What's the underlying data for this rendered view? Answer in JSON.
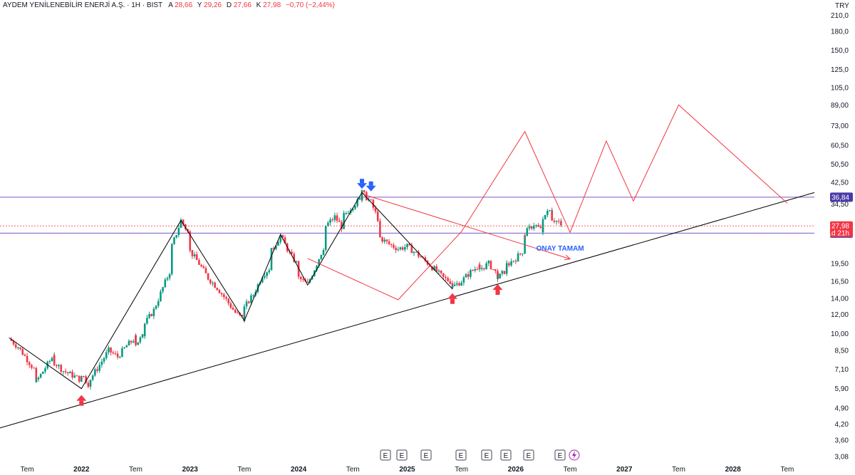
{
  "header": {
    "symbol_name": "AYDEM YENİLENEBİLİR ENERJİ A.Ş. · 1H · BIST",
    "open_label": "A",
    "open_value": "28,66",
    "high_label": "Y",
    "high_value": "29,26",
    "low_label": "D",
    "low_value": "27,66",
    "close_label": "K",
    "close_value": "27,98",
    "change": "−0,70 (−2,44%)"
  },
  "currency": "TRY",
  "colors": {
    "up": "#089981",
    "down": "#f23645",
    "projection": "#f23645",
    "zigzag": "#000000",
    "trendline": "#000000",
    "level_line": "#7e57c2",
    "price_marker": "#f23645",
    "level_tag": "#4a3aa8",
    "annotation": "#2962ff",
    "arrow_down": "#2962ff",
    "arrow_up": "#f23645"
  },
  "y_axis_labels": [
    "210,0",
    "180,0",
    "150,0",
    "125,0",
    "105,0",
    "89,00",
    "73,00",
    "60,50",
    "50,50",
    "42,50",
    "34,50",
    "19,50",
    "16,50",
    "14,00",
    "12,00",
    "10,00",
    "8,50",
    "7,10",
    "5,90",
    "4,90",
    "4,20",
    "3,60",
    "3,08"
  ],
  "price_tags": {
    "upper_level": "36,84",
    "last_price": "27,98",
    "countdown": "1d 21h",
    "lower_level": "26,12"
  },
  "annotation_text": "ONAY TAMAM",
  "x_axis_labels": [
    "Tem",
    "2022",
    "Tem",
    "2023",
    "Tem",
    "2024",
    "Tem",
    "2025",
    "Tem",
    "2026",
    "Tem",
    "2027",
    "Tem",
    "2028",
    "Tem"
  ],
  "event_markers": [
    "E",
    "E",
    "E",
    "E",
    "E",
    "E",
    "E",
    "E",
    "E"
  ],
  "chart_data": {
    "type": "candlestick",
    "title": "AYDEM YENİLENEBİLİR ENERJİ A.Ş. · 1H · BIST",
    "y_scale": "log",
    "ylim": [
      3.0,
      230
    ],
    "xlim": [
      "2021-04",
      "2028-10"
    ],
    "grid": false,
    "horizontal_levels": [
      36.84,
      26.12
    ],
    "last_price": 27.98,
    "price_path": [
      {
        "x": "2021-05",
        "y": 9.5
      },
      {
        "x": "2021-06",
        "y": 8.8
      },
      {
        "x": "2021-07",
        "y": 7.8
      },
      {
        "x": "2021-08",
        "y": 6.9
      },
      {
        "x": "2021-08",
        "y": 6.3
      },
      {
        "x": "2021-09",
        "y": 7.2
      },
      {
        "x": "2021-10",
        "y": 8.2
      },
      {
        "x": "2021-10",
        "y": 7.6
      },
      {
        "x": "2021-11",
        "y": 7.0
      },
      {
        "x": "2021-12",
        "y": 6.7
      },
      {
        "x": "2022-01",
        "y": 6.4
      },
      {
        "x": "2022-01",
        "y": 6.8
      },
      {
        "x": "2022-02",
        "y": 6.0
      },
      {
        "x": "2022-02",
        "y": 6.5
      },
      {
        "x": "2022-03",
        "y": 7.4
      },
      {
        "x": "2022-04",
        "y": 8.5
      },
      {
        "x": "2022-05",
        "y": 8.0
      },
      {
        "x": "2022-06",
        "y": 8.9
      },
      {
        "x": "2022-07",
        "y": 9.6
      },
      {
        "x": "2022-07",
        "y": 9.1
      },
      {
        "x": "2022-08",
        "y": 9.9
      },
      {
        "x": "2022-08",
        "y": 11.0
      },
      {
        "x": "2022-09",
        "y": 12.5
      },
      {
        "x": "2022-10",
        "y": 15.5
      },
      {
        "x": "2022-11",
        "y": 19.0
      },
      {
        "x": "2022-11",
        "y": 23.0
      },
      {
        "x": "2022-12",
        "y": 29.5
      },
      {
        "x": "2023-01",
        "y": 25.5
      },
      {
        "x": "2023-01",
        "y": 22.0
      },
      {
        "x": "2023-02",
        "y": 19.5
      },
      {
        "x": "2023-03",
        "y": 17.0
      },
      {
        "x": "2023-04",
        "y": 15.5
      },
      {
        "x": "2023-05",
        "y": 13.8
      },
      {
        "x": "2023-06",
        "y": 12.2
      },
      {
        "x": "2023-07",
        "y": 11.4
      },
      {
        "x": "2023-07",
        "y": 12.8
      },
      {
        "x": "2023-08",
        "y": 14.5
      },
      {
        "x": "2023-09",
        "y": 17.5
      },
      {
        "x": "2023-10",
        "y": 19.0
      },
      {
        "x": "2023-10",
        "y": 22.0
      },
      {
        "x": "2023-11",
        "y": 25.5
      },
      {
        "x": "2023-12",
        "y": 21.5
      },
      {
        "x": "2024-01",
        "y": 19.0
      },
      {
        "x": "2024-01",
        "y": 17.0
      },
      {
        "x": "2024-02",
        "y": 16.0
      },
      {
        "x": "2024-03",
        "y": 19.5
      },
      {
        "x": "2024-04",
        "y": 24.0
      },
      {
        "x": "2024-04",
        "y": 28.0
      },
      {
        "x": "2024-05",
        "y": 30.5
      },
      {
        "x": "2024-06",
        "y": 27.0
      },
      {
        "x": "2024-06",
        "y": 31.0
      },
      {
        "x": "2024-07",
        "y": 34.0
      },
      {
        "x": "2024-08",
        "y": 36.5
      },
      {
        "x": "2024-08",
        "y": 38.5
      },
      {
        "x": "2024-09",
        "y": 35.0
      },
      {
        "x": "2024-10",
        "y": 28.5
      },
      {
        "x": "2024-10",
        "y": 25.0
      },
      {
        "x": "2024-11",
        "y": 23.5
      },
      {
        "x": "2024-12",
        "y": 22.5
      },
      {
        "x": "2025-01",
        "y": 23.0
      },
      {
        "x": "2025-02",
        "y": 21.5
      },
      {
        "x": "2025-03",
        "y": 20.0
      },
      {
        "x": "2025-04",
        "y": 18.5
      },
      {
        "x": "2025-05",
        "y": 17.0
      },
      {
        "x": "2025-06",
        "y": 16.3
      },
      {
        "x": "2025-06",
        "y": 15.6
      },
      {
        "x": "2025-07",
        "y": 16.5
      },
      {
        "x": "2025-08",
        "y": 18.0
      },
      {
        "x": "2025-09",
        "y": 19.2
      },
      {
        "x": "2025-09",
        "y": 18.5
      },
      {
        "x": "2025-10",
        "y": 19.5
      },
      {
        "x": "2025-11",
        "y": 17.5
      },
      {
        "x": "2025-11",
        "y": 17.0
      },
      {
        "x": "2025-12",
        "y": 18.5
      },
      {
        "x": "2025-12",
        "y": 19.3
      },
      {
        "x": "2026-01",
        "y": 20.5
      },
      {
        "x": "2026-02",
        "y": 22.5
      },
      {
        "x": "2026-02",
        "y": 26.0
      },
      {
        "x": "2026-03",
        "y": 28.5
      },
      {
        "x": "2026-04",
        "y": 26.5
      },
      {
        "x": "2026-04",
        "y": 30.5
      },
      {
        "x": "2026-05",
        "y": 33.0
      },
      {
        "x": "2026-05",
        "y": 30.0
      },
      {
        "x": "2026-06",
        "y": 28.66
      },
      {
        "x": "2026-06",
        "y": 27.98
      }
    ],
    "zigzag": [
      {
        "x": "2021-05",
        "y": 9.6
      },
      {
        "x": "2022-01",
        "y": 5.9
      },
      {
        "x": "2022-12",
        "y": 29.5
      },
      {
        "x": "2023-07",
        "y": 11.3
      },
      {
        "x": "2023-11",
        "y": 25.8
      },
      {
        "x": "2024-02",
        "y": 15.9
      },
      {
        "x": "2024-08",
        "y": 38.5
      },
      {
        "x": "2025-06",
        "y": 15.3
      }
    ],
    "trendline": [
      {
        "x": "2021-04",
        "y": 4.05
      },
      {
        "x": "2028-10",
        "y": 38.5
      }
    ],
    "projection_path": [
      {
        "x": "2024-02",
        "y": 20.5
      },
      {
        "x": "2024-12",
        "y": 13.8
      },
      {
        "x": "2025-07",
        "y": 26.5
      },
      {
        "x": "2026-02",
        "y": 69.0
      },
      {
        "x": "2026-07",
        "y": 26.3
      },
      {
        "x": "2026-11",
        "y": 63.0
      },
      {
        "x": "2027-02",
        "y": 35.5
      },
      {
        "x": "2027-07",
        "y": 89.0
      },
      {
        "x": "2028-07",
        "y": 34.8
      }
    ],
    "target_arrow": [
      {
        "x": "2024-08",
        "y": 38.0
      },
      {
        "x": "2026-07",
        "y": 20.4
      }
    ],
    "down_arrows": [
      {
        "x": "2024-08",
        "y": 41.0
      },
      {
        "x": "2024-09",
        "y": 40.0
      }
    ],
    "up_arrows": [
      {
        "x": "2022-01",
        "y": 5.4
      },
      {
        "x": "2025-06",
        "y": 14.3
      },
      {
        "x": "2025-11",
        "y": 15.6
      }
    ],
    "annotation_point": {
      "x": "2026-02",
      "y": 22.5
    }
  }
}
